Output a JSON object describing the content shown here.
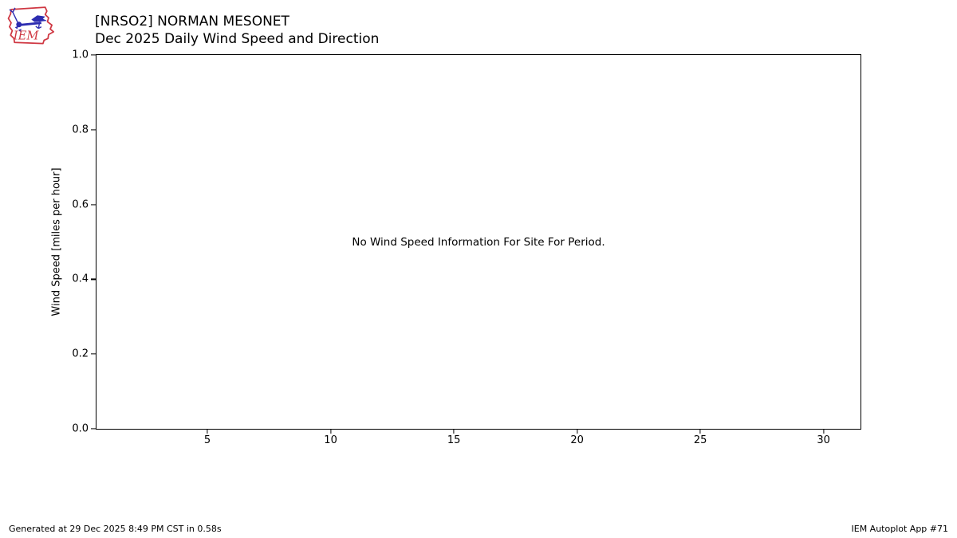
{
  "logo": {
    "text": "IEM"
  },
  "header": {
    "title_line1": "[NRSO2] NORMAN MESONET",
    "title_line2": "Dec 2025 Daily Wind Speed and Direction"
  },
  "chart_data": {
    "type": "line",
    "title": "[NRSO2] NORMAN MESONET - Dec 2025 Daily Wind Speed and Direction",
    "xlabel": "",
    "ylabel": "Wind Speed [miles per hour]",
    "x_ticks": [
      5,
      10,
      15,
      20,
      25,
      30
    ],
    "y_ticks": [
      "0.0",
      "0.2",
      "0.4",
      "0.6",
      "0.8",
      "1.0"
    ],
    "xlim": [
      0.5,
      31.5
    ],
    "ylim": [
      0.0,
      1.0
    ],
    "series": [],
    "no_data_message": "No Wind Speed Information For Site For Period.",
    "grid": false,
    "legend": "none"
  },
  "footer": {
    "generated_text": "Generated at 29 Dec 2025 8:49 PM CST in 0.58s",
    "app_text": "IEM Autoplot App #71"
  },
  "colors": {
    "logo_red": "#cf3742",
    "logo_blue": "#2c2cb0",
    "axis": "#000000",
    "background": "#ffffff"
  }
}
